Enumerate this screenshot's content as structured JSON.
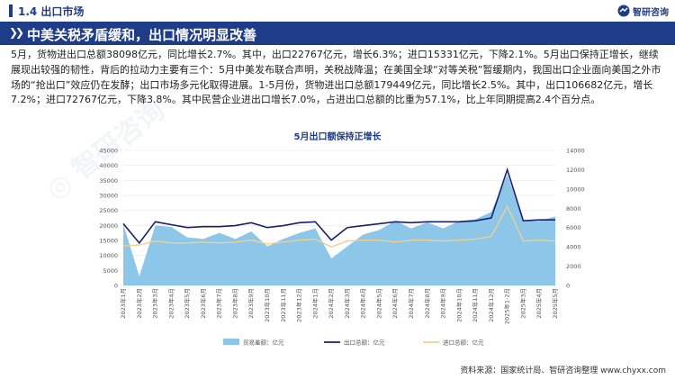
{
  "header": {
    "section_title": "1.4  出口市场",
    "brand": "智研咨询"
  },
  "banner": {
    "title": "中美关税矛盾缓和，出口情况明显改善"
  },
  "body_text": "5月，货物进出口总额38098亿元，同比增长2.7%。其中，出口22767亿元，增长6.3%；进口15331亿元，下降2.1%。5月出口保持正增长，继续展现出较强的韧性，背后的拉动力主要有三个：5月中美发布联合声明，关税战降温；在美国全球“对等关税”暂缓期内，我国出口企业面向美国之外市场的“抢出口”效应仍在发酵；出口市场多元化取得进展。1-5月份，货物进出口总额179449亿元，同比增长2.5%。其中，出口106682亿元，增长7.2%；进口72767亿元，下降3.8%。其中民营企业进出口增长7.0%，占进出口总额的比重为57.1%，比上年同期提高2.4个百分点。",
  "source": "资料来源：国家统计局、智研咨询整理   www.chyxx.com",
  "colors": {
    "brand_blue": "#1f3c88",
    "area_fill": "#8cc7ea",
    "export_line": "#1a1f6e",
    "import_line": "#f2cf8c"
  },
  "chart_data": {
    "type": "line",
    "title": "5月出口额保持正增长",
    "categories": [
      "2023年1月",
      "2023年2月",
      "2023年3月",
      "2023年4月",
      "2023年5月",
      "2023年6月",
      "2023年7月",
      "2023年8月",
      "2023年9月",
      "2023年10月",
      "2023年11月",
      "2023年12月",
      "2024年1月",
      "2024年2月",
      "2024年3月",
      "2024年4月",
      "2024年5月",
      "2024年6月",
      "2024年7月",
      "2024年8月",
      "2024年9月",
      "2024年10月",
      "2024年11月",
      "2024年12月",
      "2025年1-2月",
      "2025年3月",
      "2025年4月",
      "2025年5月"
    ],
    "left_axis": {
      "min": 0,
      "max": 45000,
      "ticks": [
        0,
        5000,
        10000,
        15000,
        20000,
        25000,
        30000,
        35000,
        40000,
        45000
      ]
    },
    "right_axis": {
      "min": 0,
      "max": 14000,
      "ticks": [
        0,
        2000,
        4000,
        6000,
        8000,
        10000,
        12000,
        14000
      ]
    },
    "series": [
      {
        "name": "贸易差额：亿元",
        "type": "area",
        "axis": "left",
        "values": [
          20500,
          3000,
          20000,
          19500,
          16000,
          15500,
          17500,
          15500,
          18000,
          13000,
          15500,
          17500,
          19000,
          9000,
          13000,
          17000,
          18500,
          21500,
          19000,
          21000,
          19000,
          21500,
          22000,
          24500,
          37000,
          21500,
          21500,
          23000
        ]
      },
      {
        "name": "出口总额：亿元",
        "type": "line",
        "axis": "right",
        "values": [
          6400,
          4400,
          6600,
          6300,
          6000,
          6100,
          6100,
          6200,
          6500,
          6000,
          6200,
          6500,
          6600,
          4700,
          6000,
          6200,
          6400,
          6600,
          6500,
          6600,
          6600,
          6600,
          6700,
          7000,
          12000,
          6700,
          6800,
          6800
        ]
      },
      {
        "name": "进口总额：亿元",
        "type": "line",
        "axis": "right",
        "values": [
          4100,
          4200,
          4600,
          4400,
          4400,
          4500,
          4400,
          4500,
          4700,
          4300,
          4500,
          4700,
          4800,
          4000,
          4600,
          4700,
          4700,
          4500,
          4700,
          4700,
          4600,
          4700,
          4800,
          5100,
          8200,
          4600,
          4700,
          4600
        ]
      }
    ]
  }
}
